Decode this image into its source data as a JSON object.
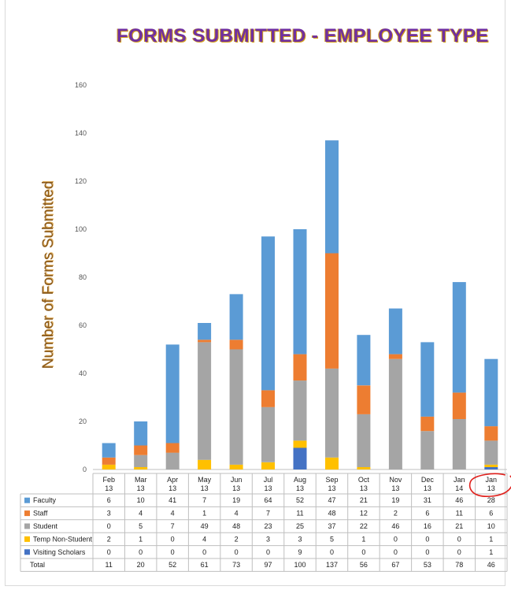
{
  "chart_data": {
    "type": "bar",
    "stacked": true,
    "title": "FORMS SUBMITTED - EMPLOYEE TYPE",
    "ylabel": "Number of Forms Submitted",
    "xlabel": "",
    "ylim": [
      0,
      160
    ],
    "yticks": [
      0,
      20,
      40,
      60,
      80,
      100,
      120,
      140,
      160
    ],
    "grid": false,
    "categories": [
      [
        "Feb",
        "13"
      ],
      [
        "Mar",
        "13"
      ],
      [
        "Apr",
        "13"
      ],
      [
        "May",
        "13"
      ],
      [
        "Jun",
        "13"
      ],
      [
        "Jul",
        "13"
      ],
      [
        "Aug",
        "13"
      ],
      [
        "Sep",
        "13"
      ],
      [
        "Oct",
        "13"
      ],
      [
        "Nov",
        "13"
      ],
      [
        "Dec",
        "13"
      ],
      [
        "Jan",
        "14"
      ],
      [
        "Jan",
        "13"
      ]
    ],
    "stack_order": [
      "Visiting Scholars",
      "Temp Non-Student",
      "Student",
      "Staff",
      "Faculty"
    ],
    "series": [
      {
        "name": "Faculty",
        "color": "#5b9bd5",
        "values": [
          6,
          10,
          41,
          7,
          19,
          64,
          52,
          47,
          21,
          19,
          31,
          46,
          28
        ]
      },
      {
        "name": "Staff",
        "color": "#ed7d31",
        "values": [
          3,
          4,
          4,
          1,
          4,
          7,
          11,
          48,
          12,
          2,
          6,
          11,
          6
        ]
      },
      {
        "name": "Student",
        "color": "#a5a5a5",
        "values": [
          0,
          5,
          7,
          49,
          48,
          23,
          25,
          37,
          22,
          46,
          16,
          21,
          10
        ]
      },
      {
        "name": "Temp Non-Student",
        "color": "#ffc000",
        "values": [
          2,
          1,
          0,
          4,
          2,
          3,
          3,
          5,
          1,
          0,
          0,
          0,
          1
        ]
      },
      {
        "name": "Visiting Scholars",
        "color": "#4472c4",
        "values": [
          0,
          0,
          0,
          0,
          0,
          0,
          9,
          0,
          0,
          0,
          0,
          0,
          1
        ]
      }
    ],
    "total_label": "Total",
    "totals": [
      11,
      20,
      52,
      61,
      73,
      97,
      100,
      137,
      56,
      67,
      53,
      78,
      46
    ],
    "legend": "data-table",
    "annotation": "red circle around last category"
  }
}
